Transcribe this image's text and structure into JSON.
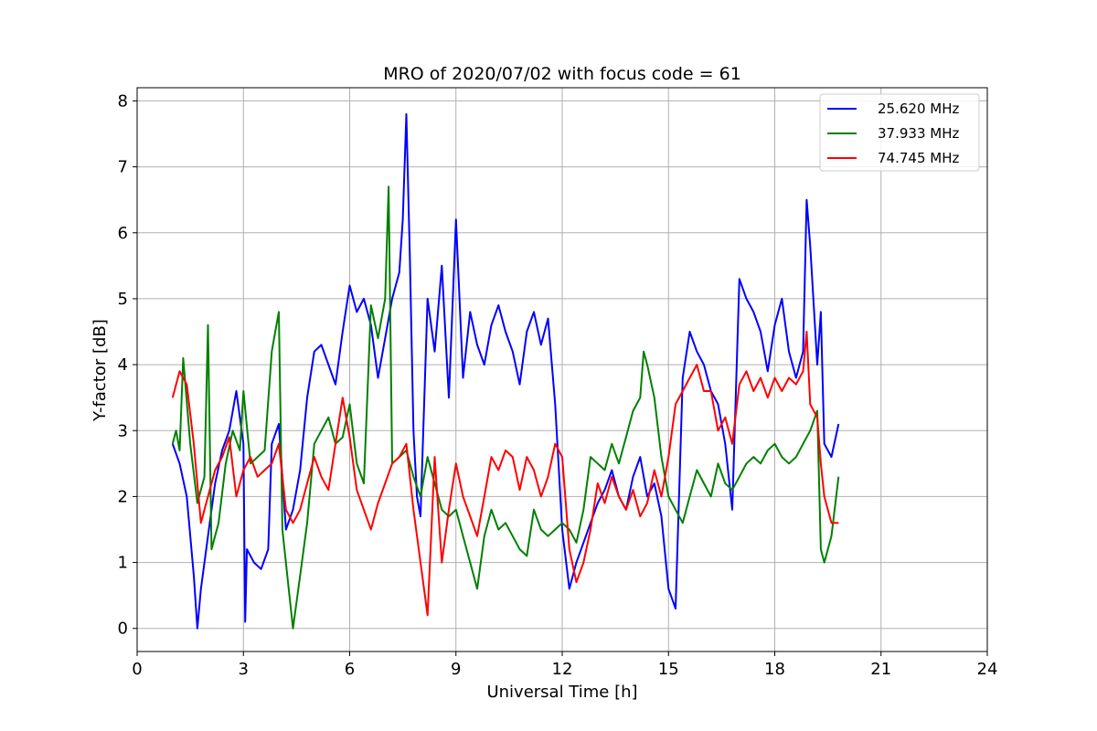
{
  "chart_data": {
    "type": "line",
    "title": "MRO of 2020/07/02 with focus code = 61",
    "xlabel": "Universal Time [h]",
    "ylabel": "Y-factor [dB]",
    "xlim": [
      0,
      24
    ],
    "ylim": [
      -0.35,
      8.2
    ],
    "xticks": [
      0,
      3,
      6,
      9,
      12,
      15,
      18,
      21,
      24
    ],
    "yticks": [
      0,
      1,
      2,
      3,
      4,
      5,
      6,
      7,
      8
    ],
    "grid": true,
    "legend_position": "top-right",
    "series": [
      {
        "name": "25.620 MHz",
        "color": "#0000ff",
        "x": [
          1.0,
          1.2,
          1.4,
          1.6,
          1.7,
          1.8,
          2.0,
          2.2,
          2.4,
          2.6,
          2.8,
          3.0,
          3.05,
          3.1,
          3.3,
          3.5,
          3.7,
          3.8,
          4.0,
          4.2,
          4.4,
          4.6,
          4.8,
          5.0,
          5.2,
          5.4,
          5.6,
          5.8,
          6.0,
          6.2,
          6.4,
          6.6,
          6.8,
          7.0,
          7.2,
          7.4,
          7.5,
          7.6,
          7.7,
          7.8,
          7.9,
          8.0,
          8.2,
          8.4,
          8.6,
          8.8,
          9.0,
          9.2,
          9.4,
          9.6,
          9.8,
          10.0,
          10.2,
          10.4,
          10.6,
          10.8,
          11.0,
          11.2,
          11.4,
          11.6,
          11.8,
          12.0,
          12.2,
          12.4,
          12.6,
          12.8,
          13.0,
          13.2,
          13.4,
          13.6,
          13.8,
          14.0,
          14.2,
          14.4,
          14.6,
          14.8,
          15.0,
          15.2,
          15.4,
          15.6,
          15.8,
          16.0,
          16.2,
          16.4,
          16.6,
          16.8,
          17.0,
          17.2,
          17.4,
          17.6,
          17.8,
          18.0,
          18.2,
          18.4,
          18.6,
          18.8,
          18.9,
          19.0,
          19.2,
          19.3,
          19.4,
          19.6,
          19.8
        ],
        "values": [
          2.8,
          2.5,
          2.0,
          0.8,
          0.0,
          0.6,
          1.4,
          2.2,
          2.7,
          3.0,
          3.6,
          2.8,
          0.1,
          1.2,
          1.0,
          0.9,
          1.2,
          2.8,
          3.1,
          1.5,
          1.8,
          2.4,
          3.5,
          4.2,
          4.3,
          4.0,
          3.7,
          4.5,
          5.2,
          4.8,
          5.0,
          4.6,
          3.8,
          4.4,
          5.0,
          5.4,
          6.2,
          7.8,
          5.6,
          3.0,
          2.0,
          1.7,
          5.0,
          4.2,
          5.5,
          3.5,
          6.2,
          3.8,
          4.8,
          4.3,
          4.0,
          4.6,
          4.9,
          4.5,
          4.2,
          3.7,
          4.5,
          4.8,
          4.3,
          4.7,
          3.4,
          1.5,
          0.6,
          1.0,
          1.3,
          1.6,
          1.9,
          2.1,
          2.4,
          2.0,
          1.8,
          2.3,
          2.6,
          2.0,
          2.2,
          1.7,
          0.6,
          0.3,
          3.8,
          4.5,
          4.2,
          4.0,
          3.6,
          3.4,
          2.8,
          1.8,
          5.3,
          5.0,
          4.8,
          4.5,
          3.9,
          4.6,
          5.0,
          4.2,
          3.8,
          4.2,
          6.5,
          5.8,
          4.0,
          4.8,
          2.8,
          2.6,
          3.1
        ]
      },
      {
        "name": "37.933 MHz",
        "color": "#008000",
        "x": [
          1.0,
          1.1,
          1.2,
          1.3,
          1.5,
          1.7,
          1.9,
          2.0,
          2.1,
          2.3,
          2.5,
          2.7,
          2.9,
          3.0,
          3.2,
          3.4,
          3.6,
          3.8,
          3.9,
          4.0,
          4.1,
          4.3,
          4.4,
          4.6,
          4.8,
          5.0,
          5.2,
          5.4,
          5.6,
          5.8,
          6.0,
          6.2,
          6.4,
          6.6,
          6.8,
          7.0,
          7.1,
          7.2,
          7.4,
          7.6,
          7.8,
          8.0,
          8.2,
          8.4,
          8.6,
          8.8,
          9.0,
          9.2,
          9.4,
          9.6,
          9.8,
          10.0,
          10.2,
          10.4,
          10.6,
          10.8,
          11.0,
          11.2,
          11.4,
          11.6,
          11.8,
          12.0,
          12.2,
          12.4,
          12.6,
          12.8,
          13.0,
          13.2,
          13.4,
          13.6,
          13.8,
          14.0,
          14.2,
          14.3,
          14.4,
          14.6,
          14.8,
          15.0,
          15.2,
          15.4,
          15.6,
          15.8,
          16.0,
          16.2,
          16.4,
          16.6,
          16.8,
          17.0,
          17.2,
          17.4,
          17.6,
          17.8,
          18.0,
          18.2,
          18.4,
          18.6,
          18.8,
          19.0,
          19.2,
          19.3,
          19.4,
          19.6,
          19.8
        ],
        "values": [
          2.8,
          3.0,
          2.7,
          4.1,
          2.8,
          1.9,
          2.3,
          4.6,
          1.2,
          1.6,
          2.5,
          3.0,
          2.7,
          3.6,
          2.5,
          2.6,
          2.7,
          4.2,
          4.5,
          4.8,
          1.5,
          0.5,
          0.0,
          0.8,
          1.6,
          2.8,
          3.0,
          3.2,
          2.8,
          2.9,
          3.4,
          2.5,
          2.2,
          4.9,
          4.4,
          5.0,
          6.7,
          2.5,
          2.6,
          2.7,
          2.3,
          2.0,
          2.6,
          2.2,
          1.8,
          1.7,
          1.8,
          1.4,
          1.0,
          0.6,
          1.4,
          1.8,
          1.5,
          1.6,
          1.4,
          1.2,
          1.1,
          1.8,
          1.5,
          1.4,
          1.5,
          1.6,
          1.5,
          1.3,
          1.8,
          2.6,
          2.5,
          2.4,
          2.8,
          2.5,
          2.9,
          3.3,
          3.5,
          4.2,
          4.0,
          3.5,
          2.6,
          2.0,
          1.8,
          1.6,
          2.0,
          2.4,
          2.2,
          2.0,
          2.5,
          2.2,
          2.1,
          2.3,
          2.5,
          2.6,
          2.5,
          2.7,
          2.8,
          2.6,
          2.5,
          2.6,
          2.8,
          3.0,
          3.3,
          1.2,
          1.0,
          1.4,
          2.3
        ]
      },
      {
        "name": "74.745 MHz",
        "color": "#ff0000",
        "x": [
          1.0,
          1.2,
          1.4,
          1.6,
          1.8,
          2.0,
          2.2,
          2.4,
          2.6,
          2.8,
          3.0,
          3.2,
          3.4,
          3.6,
          3.8,
          4.0,
          4.2,
          4.4,
          4.6,
          4.8,
          5.0,
          5.2,
          5.4,
          5.6,
          5.8,
          6.0,
          6.2,
          6.4,
          6.6,
          6.8,
          7.0,
          7.2,
          7.4,
          7.6,
          7.8,
          8.0,
          8.2,
          8.4,
          8.6,
          8.8,
          9.0,
          9.2,
          9.4,
          9.6,
          9.8,
          10.0,
          10.2,
          10.4,
          10.6,
          10.8,
          11.0,
          11.2,
          11.4,
          11.6,
          11.8,
          12.0,
          12.2,
          12.4,
          12.6,
          12.8,
          13.0,
          13.2,
          13.4,
          13.6,
          13.8,
          14.0,
          14.2,
          14.4,
          14.6,
          14.8,
          15.0,
          15.2,
          15.4,
          15.6,
          15.8,
          16.0,
          16.2,
          16.4,
          16.6,
          16.8,
          17.0,
          17.2,
          17.4,
          17.6,
          17.8,
          18.0,
          18.2,
          18.4,
          18.6,
          18.8,
          18.9,
          19.0,
          19.2,
          19.3,
          19.4,
          19.6,
          19.8
        ],
        "values": [
          3.5,
          3.9,
          3.7,
          2.8,
          1.6,
          2.0,
          2.4,
          2.6,
          2.9,
          2.0,
          2.4,
          2.6,
          2.3,
          2.4,
          2.5,
          2.8,
          1.8,
          1.6,
          1.8,
          2.2,
          2.6,
          2.3,
          2.1,
          2.8,
          3.5,
          2.9,
          2.1,
          1.8,
          1.5,
          1.9,
          2.2,
          2.5,
          2.6,
          2.8,
          1.8,
          1.0,
          0.2,
          2.6,
          1.0,
          1.8,
          2.5,
          2.0,
          1.7,
          1.4,
          2.0,
          2.6,
          2.4,
          2.7,
          2.6,
          2.1,
          2.6,
          2.4,
          2.0,
          2.3,
          2.8,
          2.6,
          1.2,
          0.7,
          1.0,
          1.5,
          2.2,
          1.9,
          2.3,
          2.0,
          1.8,
          2.1,
          1.7,
          1.9,
          2.4,
          2.0,
          2.6,
          3.4,
          3.6,
          3.8,
          4.0,
          3.6,
          3.6,
          3.0,
          3.2,
          2.8,
          3.7,
          3.9,
          3.6,
          3.8,
          3.5,
          3.8,
          3.6,
          3.8,
          3.7,
          3.9,
          4.5,
          3.4,
          3.2,
          2.5,
          2.0,
          1.6,
          1.6
        ]
      }
    ]
  }
}
